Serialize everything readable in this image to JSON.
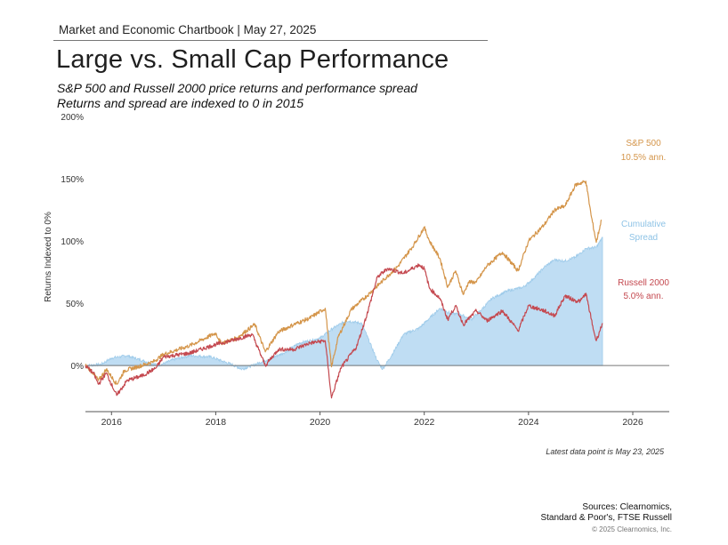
{
  "header": {
    "chartbook": "Market and Economic Chartbook | May 27, 2025",
    "title": "Large vs. Small Cap Performance",
    "subtitle_1": "S&P 500 and Russell 2000 price returns and performance spread",
    "subtitle_2": "Returns and spread are indexed to 0 in 2015"
  },
  "chart_data": {
    "type": "line",
    "title": "Large vs. Small Cap Performance",
    "xlabel": "",
    "ylabel": "Returns Indexed to 0%",
    "xlim": [
      2015.5,
      2026.7
    ],
    "ylim": [
      -37,
      200
    ],
    "x_ticks": [
      2016,
      2018,
      2020,
      2022,
      2024,
      2026
    ],
    "y_ticks": [
      0,
      50,
      100,
      150,
      200
    ],
    "y_tick_labels": [
      "0%",
      "50%",
      "100%",
      "150%",
      "200%"
    ],
    "series": [
      {
        "name": "S&P 500",
        "label_1": "S&P 500",
        "label_2": "10.5% ann.",
        "kind": "line",
        "color": "#D4954A",
        "points": [
          [
            2015.5,
            0
          ],
          [
            2015.65,
            -6
          ],
          [
            2015.75,
            -12
          ],
          [
            2015.9,
            -3
          ],
          [
            2016.1,
            -15
          ],
          [
            2016.25,
            -4
          ],
          [
            2016.5,
            -1
          ],
          [
            2016.8,
            3
          ],
          [
            2017.0,
            9
          ],
          [
            2017.5,
            16
          ],
          [
            2018.0,
            26
          ],
          [
            2018.1,
            18
          ],
          [
            2018.4,
            22
          ],
          [
            2018.75,
            33
          ],
          [
            2018.95,
            11
          ],
          [
            2019.2,
            27
          ],
          [
            2019.5,
            33
          ],
          [
            2019.8,
            38
          ],
          [
            2020.1,
            46
          ],
          [
            2020.22,
            -1
          ],
          [
            2020.35,
            23
          ],
          [
            2020.6,
            45
          ],
          [
            2020.9,
            56
          ],
          [
            2021.2,
            68
          ],
          [
            2021.5,
            80
          ],
          [
            2021.8,
            97
          ],
          [
            2022.0,
            111
          ],
          [
            2022.1,
            100
          ],
          [
            2022.3,
            86
          ],
          [
            2022.45,
            63
          ],
          [
            2022.6,
            76
          ],
          [
            2022.75,
            57
          ],
          [
            2022.85,
            67
          ],
          [
            2023.0,
            67
          ],
          [
            2023.2,
            80
          ],
          [
            2023.5,
            91
          ],
          [
            2023.8,
            76
          ],
          [
            2024.0,
            100
          ],
          [
            2024.3,
            113
          ],
          [
            2024.5,
            125
          ],
          [
            2024.7,
            128
          ],
          [
            2024.9,
            145
          ],
          [
            2025.1,
            148
          ],
          [
            2025.2,
            121
          ],
          [
            2025.3,
            99
          ],
          [
            2025.4,
            117
          ]
        ]
      },
      {
        "name": "Russell 2000",
        "label_1": "Russell 2000",
        "label_2": "5.0% ann.",
        "kind": "line",
        "color": "#C4484F",
        "points": [
          [
            2015.5,
            0
          ],
          [
            2015.65,
            -6
          ],
          [
            2015.75,
            -15
          ],
          [
            2015.9,
            -6
          ],
          [
            2016.1,
            -24
          ],
          [
            2016.3,
            -12
          ],
          [
            2016.6,
            -8
          ],
          [
            2016.85,
            -2
          ],
          [
            2017.0,
            7
          ],
          [
            2017.5,
            10
          ],
          [
            2018.0,
            17
          ],
          [
            2018.3,
            20
          ],
          [
            2018.7,
            25
          ],
          [
            2018.95,
            0
          ],
          [
            2019.2,
            13
          ],
          [
            2019.5,
            13
          ],
          [
            2019.8,
            18
          ],
          [
            2020.1,
            20
          ],
          [
            2020.22,
            -26
          ],
          [
            2020.4,
            -2
          ],
          [
            2020.7,
            15
          ],
          [
            2020.9,
            41
          ],
          [
            2021.1,
            71
          ],
          [
            2021.3,
            78
          ],
          [
            2021.6,
            74
          ],
          [
            2021.9,
            81
          ],
          [
            2022.0,
            78
          ],
          [
            2022.1,
            62
          ],
          [
            2022.3,
            54
          ],
          [
            2022.45,
            37
          ],
          [
            2022.6,
            48
          ],
          [
            2022.75,
            33
          ],
          [
            2023.0,
            44
          ],
          [
            2023.2,
            36
          ],
          [
            2023.5,
            44
          ],
          [
            2023.8,
            28
          ],
          [
            2024.0,
            48
          ],
          [
            2024.3,
            44
          ],
          [
            2024.5,
            40
          ],
          [
            2024.7,
            56
          ],
          [
            2024.9,
            52
          ],
          [
            2025.0,
            52
          ],
          [
            2025.1,
            58
          ],
          [
            2025.25,
            28
          ],
          [
            2025.3,
            20
          ],
          [
            2025.42,
            34
          ]
        ]
      },
      {
        "name": "Cumulative Spread",
        "label_1": "Cumulative",
        "label_2": "Spread",
        "kind": "area",
        "color": "#BFDDF3",
        "points": [
          [
            2015.5,
            0
          ],
          [
            2015.8,
            1
          ],
          [
            2016.0,
            6
          ],
          [
            2016.3,
            8
          ],
          [
            2016.6,
            4
          ],
          [
            2016.9,
            0
          ],
          [
            2017.2,
            5
          ],
          [
            2017.5,
            8
          ],
          [
            2017.9,
            7
          ],
          [
            2018.3,
            1
          ],
          [
            2018.5,
            -3
          ],
          [
            2018.7,
            0
          ],
          [
            2019.0,
            5
          ],
          [
            2019.3,
            10
          ],
          [
            2019.6,
            18
          ],
          [
            2020.0,
            22
          ],
          [
            2020.25,
            30
          ],
          [
            2020.5,
            36
          ],
          [
            2020.8,
            34
          ],
          [
            2021.0,
            14
          ],
          [
            2021.1,
            4
          ],
          [
            2021.2,
            -3
          ],
          [
            2021.4,
            10
          ],
          [
            2021.6,
            25
          ],
          [
            2021.9,
            30
          ],
          [
            2022.1,
            38
          ],
          [
            2022.3,
            46
          ],
          [
            2022.5,
            42
          ],
          [
            2022.7,
            41
          ],
          [
            2022.9,
            37
          ],
          [
            2023.1,
            45
          ],
          [
            2023.3,
            54
          ],
          [
            2023.6,
            60
          ],
          [
            2023.9,
            63
          ],
          [
            2024.1,
            70
          ],
          [
            2024.3,
            79
          ],
          [
            2024.5,
            85
          ],
          [
            2024.7,
            84
          ],
          [
            2024.9,
            87
          ],
          [
            2025.1,
            94
          ],
          [
            2025.3,
            95
          ],
          [
            2025.42,
            103
          ]
        ]
      }
    ]
  },
  "footer": {
    "latest_data": "Latest data point is May 23, 2025",
    "sources_1": "Sources: Clearnomics,",
    "sources_2": "Standard & Poor's, FTSE Russell",
    "copyright": "© 2025 Clearnomics, Inc."
  }
}
